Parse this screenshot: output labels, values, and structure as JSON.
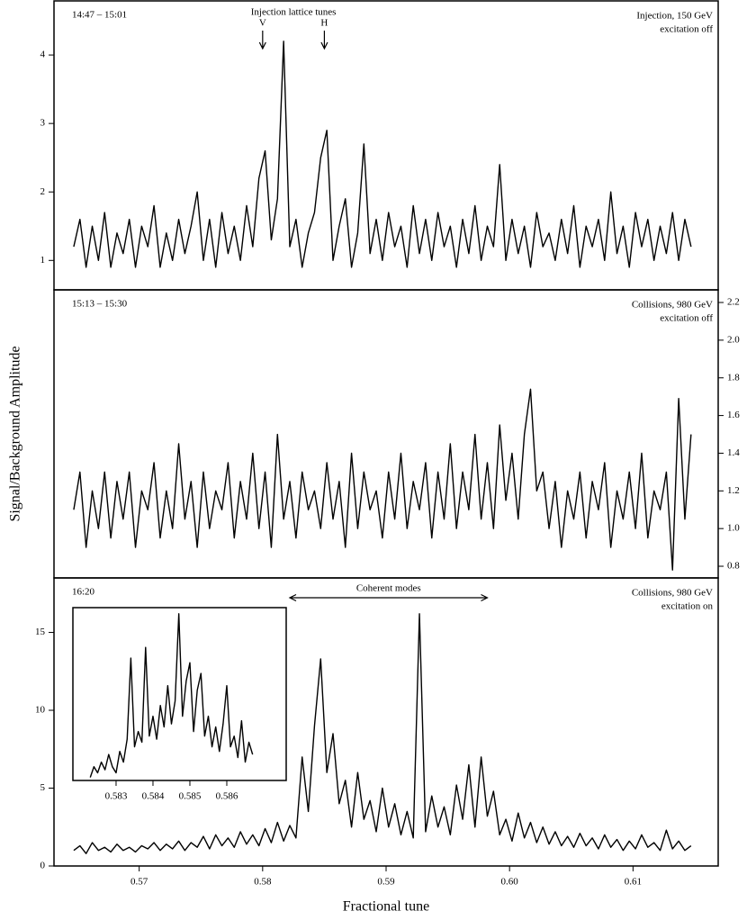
{
  "chart_data": [
    {
      "type": "line",
      "color": "#000000",
      "xlim": [
        0.5631,
        0.6169
      ],
      "ylim": [
        0.57,
        4.79
      ],
      "yticks": [
        1,
        2,
        3,
        4
      ],
      "corner_left": "14:47 – 15:01",
      "corner_right": [
        "Injection, 150 GeV",
        "excitation off"
      ],
      "markers_title": "Injection lattice tunes",
      "markers": [
        {
          "label": "V",
          "x": 0.58
        },
        {
          "label": "H",
          "x": 0.585
        }
      ],
      "x": [
        0.5647,
        0.5652,
        0.5657,
        0.5662,
        0.5667,
        0.5672,
        0.5677,
        0.5682,
        0.5687,
        0.5692,
        0.5697,
        0.5702,
        0.5707,
        0.5712,
        0.5717,
        0.5722,
        0.5727,
        0.5732,
        0.5737,
        0.5742,
        0.5747,
        0.5752,
        0.5757,
        0.5762,
        0.5767,
        0.5772,
        0.5777,
        0.5782,
        0.5787,
        0.5792,
        0.5797,
        0.5802,
        0.5807,
        0.5812,
        0.5817,
        0.5822,
        0.5827,
        0.5832,
        0.5837,
        0.5842,
        0.5847,
        0.5852,
        0.5857,
        0.5862,
        0.5867,
        0.5872,
        0.5877,
        0.5882,
        0.5887,
        0.5892,
        0.5897,
        0.5902,
        0.5907,
        0.5912,
        0.5917,
        0.5922,
        0.5927,
        0.5932,
        0.5937,
        0.5942,
        0.5947,
        0.5952,
        0.5957,
        0.5962,
        0.5967,
        0.5972,
        0.5977,
        0.5982,
        0.5987,
        0.5992,
        0.5997,
        0.6002,
        0.6007,
        0.6012,
        0.6017,
        0.6022,
        0.6027,
        0.6032,
        0.6037,
        0.6042,
        0.6047,
        0.6052,
        0.6057,
        0.6062,
        0.6067,
        0.6072,
        0.6077,
        0.6082,
        0.6087,
        0.6092,
        0.6097,
        0.6102,
        0.6107,
        0.6112,
        0.6117,
        0.6122,
        0.6127,
        0.6132,
        0.6137,
        0.6142,
        0.6147
      ],
      "values": [
        1.2,
        1.6,
        0.9,
        1.5,
        1.0,
        1.7,
        0.9,
        1.4,
        1.1,
        1.6,
        0.9,
        1.5,
        1.2,
        1.8,
        0.9,
        1.4,
        1.0,
        1.6,
        1.1,
        1.5,
        2.0,
        1.0,
        1.6,
        0.9,
        1.7,
        1.1,
        1.5,
        1.0,
        1.8,
        1.2,
        2.2,
        2.6,
        1.3,
        1.9,
        4.2,
        1.2,
        1.6,
        0.9,
        1.4,
        1.7,
        2.5,
        2.9,
        1.0,
        1.5,
        1.9,
        0.9,
        1.4,
        2.7,
        1.1,
        1.6,
        1.0,
        1.7,
        1.2,
        1.5,
        0.9,
        1.8,
        1.1,
        1.6,
        1.0,
        1.7,
        1.2,
        1.5,
        0.9,
        1.6,
        1.1,
        1.8,
        1.0,
        1.5,
        1.2,
        2.4,
        1.0,
        1.6,
        1.1,
        1.5,
        0.9,
        1.7,
        1.2,
        1.4,
        1.0,
        1.6,
        1.1,
        1.8,
        0.9,
        1.5,
        1.2,
        1.6,
        1.0,
        2.0,
        1.1,
        1.5,
        0.9,
        1.7,
        1.2,
        1.6,
        1.0,
        1.5,
        1.1,
        1.7,
        1.0,
        1.6,
        1.2
      ]
    },
    {
      "type": "line",
      "color": "#000000",
      "xlim": [
        0.5631,
        0.6169
      ],
      "ylim": [
        0.738,
        2.267
      ],
      "yaxis_side": "right",
      "yticks": [
        0.8,
        {
          "value": 1,
          "label": "1.0"
        },
        1.2,
        1.4,
        1.6,
        1.8,
        {
          "value": 2,
          "label": "2.0"
        },
        2.2
      ],
      "ylabel": "Signal/Background Amplitude",
      "corner_left": "15:13 – 15:30",
      "corner_right": [
        "Collisions, 980 GeV",
        "excitation off"
      ],
      "x": [
        0.5647,
        0.5652,
        0.5657,
        0.5662,
        0.5667,
        0.5672,
        0.5677,
        0.5682,
        0.5687,
        0.5692,
        0.5697,
        0.5702,
        0.5707,
        0.5712,
        0.5717,
        0.5722,
        0.5727,
        0.5732,
        0.5737,
        0.5742,
        0.5747,
        0.5752,
        0.5757,
        0.5762,
        0.5767,
        0.5772,
        0.5777,
        0.5782,
        0.5787,
        0.5792,
        0.5797,
        0.5802,
        0.5807,
        0.5812,
        0.5817,
        0.5822,
        0.5827,
        0.5832,
        0.5837,
        0.5842,
        0.5847,
        0.5852,
        0.5857,
        0.5862,
        0.5867,
        0.5872,
        0.5877,
        0.5882,
        0.5887,
        0.5892,
        0.5897,
        0.5902,
        0.5907,
        0.5912,
        0.5917,
        0.5922,
        0.5927,
        0.5932,
        0.5937,
        0.5942,
        0.5947,
        0.5952,
        0.5957,
        0.5962,
        0.5967,
        0.5972,
        0.5977,
        0.5982,
        0.5987,
        0.5992,
        0.5997,
        0.6002,
        0.6007,
        0.6012,
        0.6017,
        0.6022,
        0.6027,
        0.6032,
        0.6037,
        0.6042,
        0.6047,
        0.6052,
        0.6057,
        0.6062,
        0.6067,
        0.6072,
        0.6077,
        0.6082,
        0.6087,
        0.6092,
        0.6097,
        0.6102,
        0.6107,
        0.6112,
        0.6117,
        0.6122,
        0.6127,
        0.6132,
        0.6137,
        0.6142,
        0.6147
      ],
      "values": [
        1.1,
        1.3,
        0.9,
        1.2,
        1.0,
        1.3,
        0.95,
        1.25,
        1.05,
        1.3,
        0.9,
        1.2,
        1.1,
        1.35,
        0.95,
        1.2,
        1.0,
        1.45,
        1.05,
        1.25,
        0.9,
        1.3,
        1.0,
        1.2,
        1.1,
        1.35,
        0.95,
        1.25,
        1.05,
        1.4,
        1.0,
        1.3,
        0.9,
        1.5,
        1.05,
        1.25,
        0.95,
        1.3,
        1.1,
        1.2,
        1.0,
        1.35,
        1.05,
        1.25,
        0.9,
        1.4,
        1.0,
        1.3,
        1.1,
        1.2,
        0.95,
        1.3,
        1.05,
        1.4,
        1.0,
        1.25,
        1.1,
        1.35,
        0.95,
        1.3,
        1.05,
        1.45,
        1.0,
        1.3,
        1.1,
        1.5,
        1.05,
        1.35,
        1.0,
        1.55,
        1.15,
        1.4,
        1.05,
        1.5,
        1.74,
        1.2,
        1.3,
        1.0,
        1.25,
        0.9,
        1.2,
        1.05,
        1.3,
        0.95,
        1.25,
        1.1,
        1.35,
        0.9,
        1.2,
        1.05,
        1.3,
        1.0,
        1.4,
        0.95,
        1.2,
        1.1,
        1.3,
        0.78,
        1.69,
        1.05,
        1.5
      ]
    },
    {
      "type": "line",
      "color": "#000000",
      "xlim": [
        0.5631,
        0.6169
      ],
      "ylim": [
        0,
        18.5
      ],
      "yticks": [
        0,
        5,
        10,
        15
      ],
      "xticks": [
        0.57,
        0.58,
        0.59,
        {
          "value": 0.6,
          "label": "0.60"
        },
        0.61
      ],
      "xlabel": "Fractional tune",
      "corner_left": "16:20",
      "corner_right": [
        "Collisions, 980 GeV",
        "excitation on"
      ],
      "span_label": "Coherent modes",
      "span": [
        0.5822,
        0.5982
      ],
      "x": [
        0.5647,
        0.5652,
        0.5657,
        0.5662,
        0.5667,
        0.5672,
        0.5677,
        0.5682,
        0.5687,
        0.5692,
        0.5697,
        0.5702,
        0.5707,
        0.5712,
        0.5717,
        0.5722,
        0.5727,
        0.5732,
        0.5737,
        0.5742,
        0.5747,
        0.5752,
        0.5757,
        0.5762,
        0.5767,
        0.5772,
        0.5777,
        0.5782,
        0.5787,
        0.5792,
        0.5797,
        0.5802,
        0.5807,
        0.5812,
        0.5817,
        0.5822,
        0.5827,
        0.5832,
        0.5837,
        0.5842,
        0.5847,
        0.5852,
        0.5857,
        0.5862,
        0.5867,
        0.5872,
        0.5877,
        0.5882,
        0.5887,
        0.5892,
        0.5897,
        0.5902,
        0.5907,
        0.5912,
        0.5917,
        0.5922,
        0.5927,
        0.5932,
        0.5937,
        0.5942,
        0.5947,
        0.5952,
        0.5957,
        0.5962,
        0.5967,
        0.5972,
        0.5977,
        0.5982,
        0.5987,
        0.5992,
        0.5997,
        0.6002,
        0.6007,
        0.6012,
        0.6017,
        0.6022,
        0.6027,
        0.6032,
        0.6037,
        0.6042,
        0.6047,
        0.6052,
        0.6057,
        0.6062,
        0.6067,
        0.6072,
        0.6077,
        0.6082,
        0.6087,
        0.6092,
        0.6097,
        0.6102,
        0.6107,
        0.6112,
        0.6117,
        0.6122,
        0.6127,
        0.6132,
        0.6137,
        0.6142,
        0.6147
      ],
      "values": [
        1.0,
        1.3,
        0.8,
        1.5,
        1.0,
        1.2,
        0.9,
        1.4,
        1.0,
        1.2,
        0.9,
        1.3,
        1.1,
        1.5,
        1.0,
        1.4,
        1.1,
        1.6,
        1.0,
        1.5,
        1.2,
        1.9,
        1.1,
        2.0,
        1.3,
        1.8,
        1.2,
        2.2,
        1.4,
        2.0,
        1.3,
        2.4,
        1.5,
        2.8,
        1.6,
        2.6,
        1.8,
        7.0,
        3.5,
        9.0,
        13.3,
        6.0,
        8.5,
        4.0,
        5.5,
        2.5,
        6.0,
        3.0,
        4.2,
        2.2,
        5.0,
        2.5,
        4.0,
        2.0,
        3.5,
        1.8,
        16.2,
        2.2,
        4.5,
        2.5,
        3.8,
        2.0,
        5.2,
        3.0,
        6.5,
        2.5,
        7.0,
        3.2,
        4.8,
        2.0,
        3.0,
        1.6,
        3.4,
        1.8,
        2.8,
        1.5,
        2.5,
        1.4,
        2.2,
        1.3,
        1.9,
        1.2,
        2.1,
        1.3,
        1.8,
        1.1,
        2.0,
        1.2,
        1.7,
        1.0,
        1.6,
        1.1,
        2.0,
        1.2,
        1.5,
        1.0,
        2.3,
        1.1,
        1.6,
        1.0,
        1.3
      ]
    },
    {
      "type": "line",
      "color": "#000000",
      "xlim": [
        0.58183,
        0.58761
      ],
      "ylim": [
        5.3,
        16.6
      ],
      "xticks": [
        0.583,
        0.584,
        0.585,
        0.586
      ],
      "x": [
        0.5823,
        0.5824,
        0.5825,
        0.5826,
        0.5827,
        0.5828,
        0.5829,
        0.583,
        0.5831,
        0.5832,
        0.5833,
        0.5834,
        0.5835,
        0.5836,
        0.5837,
        0.5838,
        0.5839,
        0.584,
        0.5841,
        0.5842,
        0.5843,
        0.5844,
        0.5845,
        0.5846,
        0.5847,
        0.5848,
        0.5849,
        0.585,
        0.5851,
        0.5852,
        0.5853,
        0.5854,
        0.5855,
        0.5856,
        0.5857,
        0.5858,
        0.5859,
        0.586,
        0.5861,
        0.5862,
        0.5863,
        0.5864,
        0.5865,
        0.5866,
        0.5867
      ],
      "values": [
        5.5,
        6.2,
        5.8,
        6.5,
        6.0,
        7.0,
        6.2,
        5.8,
        7.2,
        6.5,
        8.0,
        13.3,
        7.5,
        8.5,
        7.8,
        14.0,
        8.2,
        9.5,
        8.0,
        10.2,
        8.8,
        11.5,
        9.0,
        10.5,
        16.2,
        9.5,
        11.8,
        13.0,
        8.5,
        11.2,
        12.3,
        8.2,
        9.5,
        7.5,
        8.8,
        7.2,
        9.0,
        11.5,
        7.5,
        8.2,
        6.8,
        9.2,
        6.5,
        7.8,
        7.0
      ]
    }
  ]
}
